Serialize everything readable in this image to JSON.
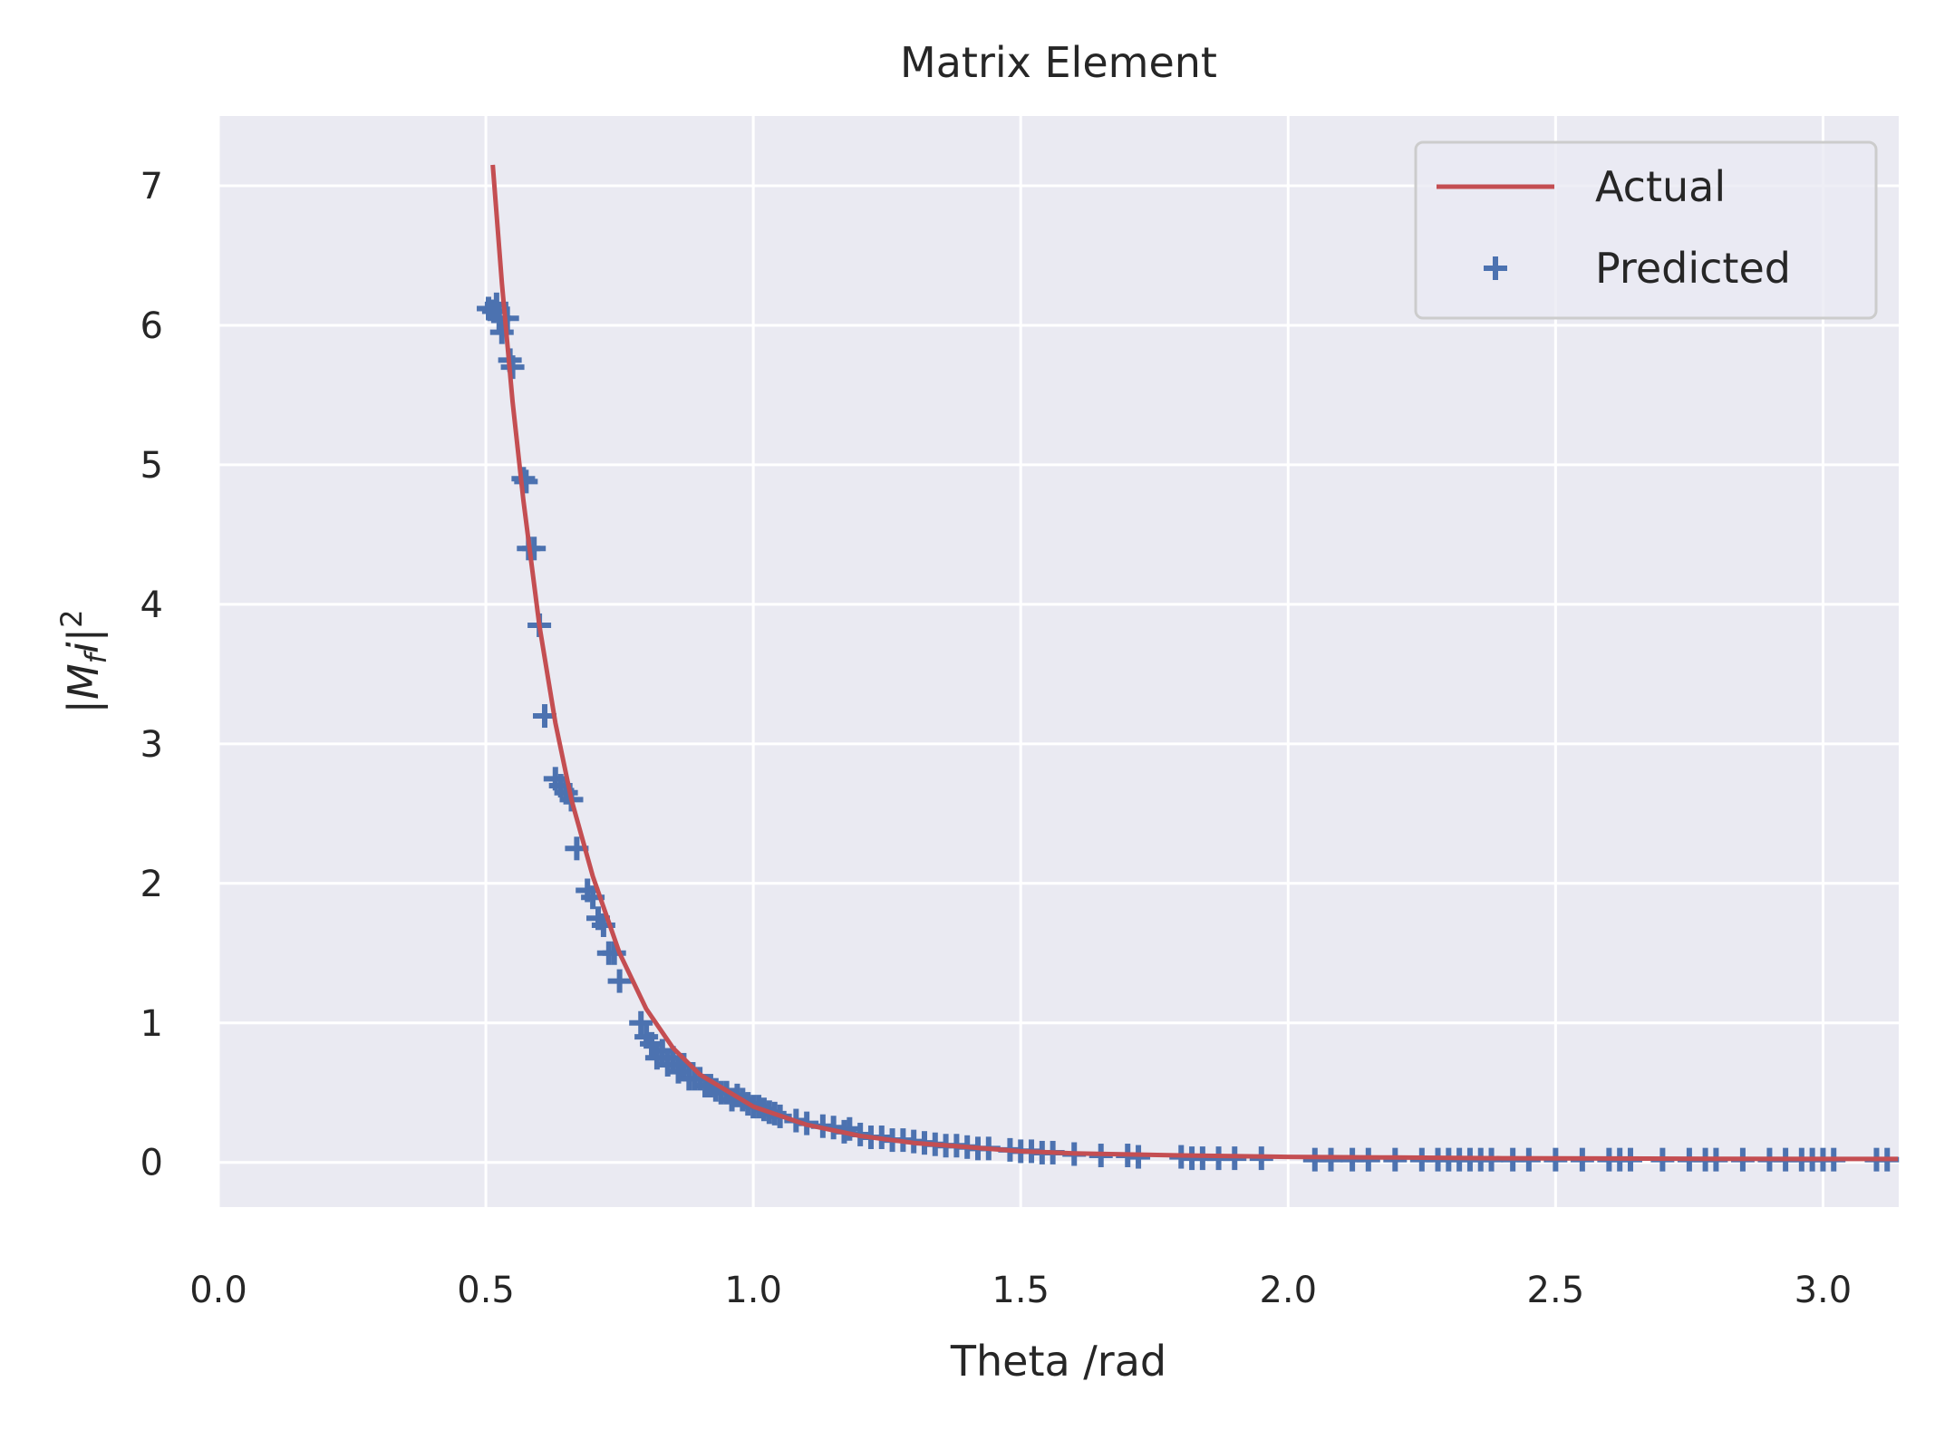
{
  "chart_data": {
    "type": "scatter",
    "title": "Matrix Element",
    "xlabel": "Theta /rad",
    "ylabel": "|M_f i|^2",
    "ylabel_parts": {
      "open": "|M",
      "sub": "f",
      "mid": "i|",
      "sup": "2"
    },
    "xlim": [
      0.0,
      3.1416
    ],
    "ylim": [
      -0.32,
      7.5
    ],
    "x_ticks": [
      0.0,
      0.5,
      1.0,
      1.5,
      2.0,
      2.5,
      3.0
    ],
    "x_tick_labels": [
      "0.0",
      "0.5",
      "1.0",
      "1.5",
      "2.0",
      "2.5",
      "3.0"
    ],
    "y_ticks": [
      0,
      1,
      2,
      3,
      4,
      5,
      6,
      7
    ],
    "y_tick_labels": [
      "0",
      "1",
      "2",
      "3",
      "4",
      "5",
      "6",
      "7"
    ],
    "grid": true,
    "legend_position": "top-right",
    "series": [
      {
        "name": "Actual",
        "kind": "line",
        "color": "#c44e52",
        "x": [
          0.513,
          0.53,
          0.55,
          0.57,
          0.6,
          0.63,
          0.66,
          0.7,
          0.75,
          0.8,
          0.85,
          0.9,
          1.0,
          1.1,
          1.2,
          1.3,
          1.4,
          1.5,
          1.6,
          1.8,
          2.0,
          2.2,
          2.4,
          2.6,
          2.8,
          3.0,
          3.14
        ],
        "y": [
          7.15,
          6.3,
          5.45,
          4.75,
          3.85,
          3.15,
          2.6,
          2.05,
          1.5,
          1.1,
          0.82,
          0.63,
          0.4,
          0.27,
          0.19,
          0.14,
          0.11,
          0.08,
          0.065,
          0.05,
          0.04,
          0.035,
          0.03,
          0.028,
          0.026,
          0.025,
          0.025
        ]
      },
      {
        "name": "Predicted",
        "kind": "scatter",
        "marker": "+",
        "color": "#4c72b0",
        "x": [
          0.505,
          0.515,
          0.52,
          0.525,
          0.53,
          0.54,
          0.545,
          0.55,
          0.57,
          0.575,
          0.58,
          0.59,
          0.6,
          0.61,
          0.63,
          0.64,
          0.65,
          0.66,
          0.67,
          0.69,
          0.7,
          0.71,
          0.72,
          0.73,
          0.74,
          0.75,
          0.79,
          0.8,
          0.81,
          0.82,
          0.83,
          0.84,
          0.85,
          0.86,
          0.87,
          0.88,
          0.89,
          0.9,
          0.91,
          0.92,
          0.93,
          0.94,
          0.95,
          0.96,
          0.97,
          0.98,
          0.99,
          1.0,
          1.01,
          1.02,
          1.03,
          1.04,
          1.05,
          1.08,
          1.1,
          1.13,
          1.15,
          1.17,
          1.18,
          1.2,
          1.22,
          1.24,
          1.26,
          1.28,
          1.3,
          1.32,
          1.34,
          1.36,
          1.38,
          1.4,
          1.42,
          1.44,
          1.48,
          1.5,
          1.52,
          1.54,
          1.56,
          1.6,
          1.65,
          1.7,
          1.72,
          1.8,
          1.82,
          1.84,
          1.87,
          1.9,
          1.95,
          2.05,
          2.08,
          2.12,
          2.15,
          2.2,
          2.25,
          2.28,
          2.3,
          2.32,
          2.34,
          2.36,
          2.38,
          2.42,
          2.45,
          2.5,
          2.55,
          2.6,
          2.62,
          2.64,
          2.7,
          2.75,
          2.78,
          2.8,
          2.85,
          2.9,
          2.93,
          2.96,
          2.98,
          3.0,
          3.02,
          3.1,
          3.12
        ],
        "y": [
          6.12,
          6.1,
          6.15,
          6.05,
          5.95,
          6.05,
          5.75,
          5.7,
          4.9,
          4.88,
          4.4,
          4.4,
          3.85,
          3.2,
          2.75,
          2.7,
          2.65,
          2.6,
          2.25,
          1.95,
          1.9,
          1.75,
          1.7,
          1.5,
          1.5,
          1.3,
          1.0,
          0.9,
          0.85,
          0.75,
          0.8,
          0.7,
          0.75,
          0.65,
          0.7,
          0.6,
          0.6,
          0.6,
          0.55,
          0.55,
          0.52,
          0.5,
          0.5,
          0.45,
          0.48,
          0.45,
          0.42,
          0.4,
          0.4,
          0.38,
          0.36,
          0.35,
          0.33,
          0.3,
          0.28,
          0.26,
          0.25,
          0.22,
          0.24,
          0.2,
          0.18,
          0.18,
          0.16,
          0.16,
          0.15,
          0.14,
          0.13,
          0.12,
          0.12,
          0.11,
          0.1,
          0.1,
          0.09,
          0.08,
          0.08,
          0.07,
          0.07,
          0.06,
          0.05,
          0.05,
          0.04,
          0.04,
          0.03,
          0.03,
          0.03,
          0.03,
          0.03,
          0.02,
          0.02,
          0.02,
          0.02,
          0.02,
          0.02,
          0.02,
          0.02,
          0.02,
          0.02,
          0.02,
          0.02,
          0.02,
          0.02,
          0.02,
          0.02,
          0.02,
          0.02,
          0.02,
          0.02,
          0.02,
          0.02,
          0.02,
          0.02,
          0.02,
          0.02,
          0.02,
          0.02,
          0.02,
          0.02,
          0.02,
          0.02
        ]
      }
    ]
  },
  "legend": {
    "items": [
      {
        "label": "Actual",
        "kind": "line",
        "color": "#c44e52"
      },
      {
        "label": "Predicted",
        "kind": "marker",
        "color": "#4c72b0"
      }
    ]
  },
  "colors": {
    "plot_background": "#eaeaf2",
    "grid": "#ffffff",
    "text": "#262626"
  }
}
